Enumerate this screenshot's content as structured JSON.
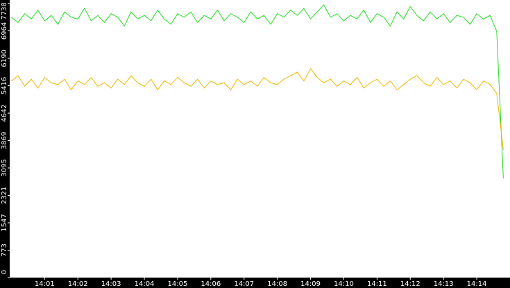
{
  "chart_data": {
    "type": "line",
    "x": [
      840,
      840.2,
      840.4,
      840.6,
      840.8,
      841,
      841.2,
      841.4,
      841.6,
      841.8,
      842,
      842.2,
      842.4,
      842.6,
      842.8,
      843,
      843.2,
      843.4,
      843.6,
      843.8,
      844,
      844.2,
      844.4,
      844.6,
      844.8,
      845,
      845.2,
      845.4,
      845.6,
      845.8,
      846,
      846.2,
      846.4,
      846.6,
      846.8,
      847,
      847.2,
      847.4,
      847.6,
      847.8,
      848,
      848.2,
      848.4,
      848.6,
      848.8,
      849,
      849.2,
      849.4,
      849.6,
      849.8,
      850,
      850.2,
      850.4,
      850.6,
      850.8,
      851,
      851.2,
      851.4,
      851.6,
      851.8,
      852,
      852.2,
      852.4,
      852.6,
      852.8,
      853,
      853.2,
      853.4,
      853.6,
      853.8,
      854,
      854.2,
      854.4,
      854.6,
      854.8
    ],
    "series": [
      {
        "color": "#22dd22",
        "values": [
          7350,
          7200,
          7450,
          7300,
          7550,
          7250,
          7400,
          7150,
          7500,
          7350,
          7300,
          7600,
          7250,
          7400,
          7200,
          7450,
          7350,
          7100,
          7500,
          7300,
          7400,
          7250,
          7550,
          7300,
          7150,
          7450,
          7350,
          7500,
          7200,
          7400,
          7300,
          7550,
          7250,
          7450,
          7350,
          7200,
          7500,
          7300,
          7400,
          7150,
          7450,
          7350,
          7550,
          7400,
          7600,
          7300,
          7500,
          7700,
          7350,
          7450,
          7250,
          7400,
          7300,
          7550,
          7200,
          7450,
          7350,
          7100,
          7500,
          7300,
          7650,
          7400,
          7250,
          7500,
          7300,
          7450,
          7200,
          7400,
          7350,
          7150,
          7450,
          7300,
          7400,
          6950,
          2800
        ]
      },
      {
        "color": "#f0b800",
        "values": [
          5550,
          5700,
          5400,
          5600,
          5350,
          5650,
          5500,
          5450,
          5600,
          5300,
          5550,
          5450,
          5650,
          5400,
          5500,
          5350,
          5600,
          5450,
          5700,
          5500,
          5400,
          5600,
          5300,
          5550,
          5450,
          5650,
          5500,
          5400,
          5600,
          5350,
          5550,
          5450,
          5500,
          5300,
          5600,
          5450,
          5550,
          5400,
          5650,
          5500,
          5450,
          5600,
          5700,
          5800,
          5550,
          5900,
          5650,
          5500,
          5600,
          5400,
          5550,
          5450,
          5650,
          5350,
          5500,
          5600,
          5400,
          5550,
          5300,
          5450,
          5600,
          5700,
          5500,
          5400,
          5650,
          5450,
          5550,
          5350,
          5600,
          5500,
          5300,
          5550,
          5450,
          5200,
          3600
        ]
      }
    ],
    "xlim": [
      839.95,
      855
    ],
    "xticks": [
      {
        "value": 841,
        "label": "14:01"
      },
      {
        "value": 842,
        "label": "14:02"
      },
      {
        "value": 843,
        "label": "14:03"
      },
      {
        "value": 844,
        "label": "14:04"
      },
      {
        "value": 845,
        "label": "14:05"
      },
      {
        "value": 846,
        "label": "14:06"
      },
      {
        "value": 847,
        "label": "14:07"
      },
      {
        "value": 848,
        "label": "14:08"
      },
      {
        "value": 849,
        "label": "14:09"
      },
      {
        "value": 850,
        "label": "14:10"
      },
      {
        "value": 851,
        "label": "14:11"
      },
      {
        "value": 852,
        "label": "14:12"
      },
      {
        "value": 853,
        "label": "14:13"
      },
      {
        "value": 854,
        "label": "14:14"
      }
    ],
    "ylim": [
      0,
      7738
    ],
    "yticks": [
      0,
      773,
      1547,
      2321,
      3095,
      3869,
      4642,
      5416,
      6190,
      6964,
      7738
    ],
    "grid": false
  }
}
